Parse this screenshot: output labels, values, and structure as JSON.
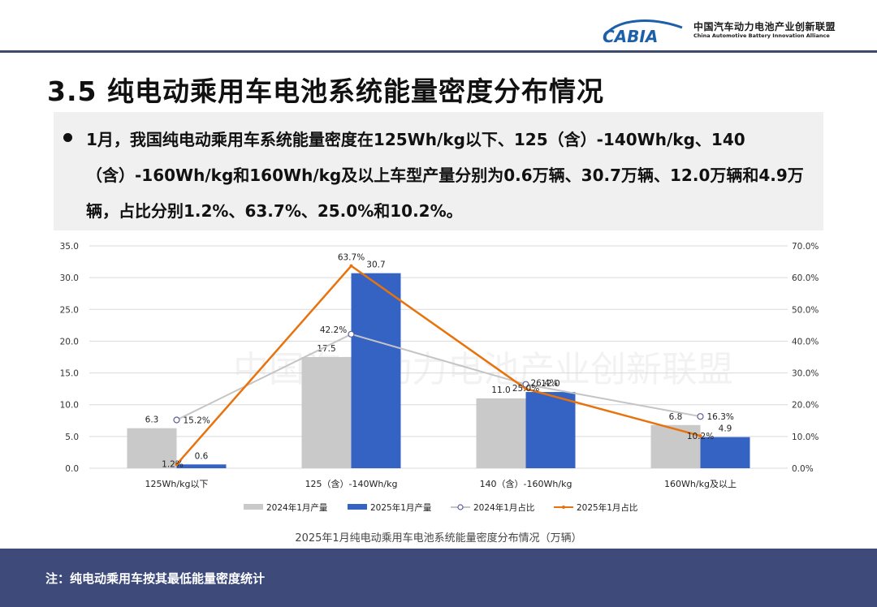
{
  "header": {
    "logo_mark": "CABIA",
    "logo_cn": "中国汽车动力电池产业创新联盟",
    "logo_en": "China Automotive Battery Innovation Alliance"
  },
  "title": "3.5 纯电动乘用车电池系统能量密度分布情况",
  "summary": "1月，我国纯电动乘用车系统能量密度在125Wh/kg以下、125（含）-140Wh/kg、140（含）-160Wh/kg和160Wh/kg及以上车型产量分别为0.6万辆、30.7万辆、12.0万辆和4.9万辆，占比分别1.2%、63.7%、25.0%和10.2%。",
  "watermark": "中国汽车动力电池产业创新联盟",
  "colors": {
    "bar_2024": "#c9c9c9",
    "bar_2025": "#3563c4",
    "line_2024": "#c4c4c4",
    "line_2025": "#e8720c",
    "footer": "#3d4a7a"
  },
  "chart_data": {
    "type": "bar",
    "title": "2025年1月纯电动乘用车电池系统能量密度分布情况（万辆）",
    "categories": [
      "125Wh/kg以下",
      "125（含）-140Wh/kg",
      "140（含）-160Wh/kg",
      "160Wh/kg及以上"
    ],
    "y_left": {
      "min": 0,
      "max": 35,
      "ticks": [
        "0.0",
        "5.0",
        "10.0",
        "15.0",
        "20.0",
        "25.0",
        "30.0",
        "35.0"
      ]
    },
    "y_right": {
      "min": 0,
      "max": 70,
      "ticks": [
        "0.0%",
        "10.0%",
        "20.0%",
        "30.0%",
        "40.0%",
        "50.0%",
        "60.0%",
        "70.0%"
      ]
    },
    "grid": true,
    "legend_position": "bottom",
    "series": [
      {
        "name": "2024年1月产量",
        "kind": "bar",
        "axis": "left",
        "values": [
          6.3,
          17.5,
          11.0,
          6.8
        ],
        "labels": [
          "6.3",
          "17.5",
          "11.0",
          "6.8"
        ]
      },
      {
        "name": "2025年1月产量",
        "kind": "bar",
        "axis": "left",
        "values": [
          0.6,
          30.7,
          12.0,
          4.9
        ],
        "labels": [
          "0.6",
          "30.7",
          "12.0",
          "4.9"
        ]
      },
      {
        "name": "2024年1月占比",
        "kind": "line",
        "axis": "right",
        "values": [
          15.2,
          42.2,
          26.4,
          16.3
        ],
        "labels": [
          "15.2%",
          "42.2%",
          "26.4%",
          "16.3%"
        ]
      },
      {
        "name": "2025年1月占比",
        "kind": "line",
        "axis": "right",
        "values": [
          1.2,
          63.7,
          25.0,
          10.2
        ],
        "labels": [
          "1.2%",
          "63.7%",
          "25.0%",
          "10.2%"
        ]
      }
    ]
  },
  "footer": {
    "note": "注：纯电动乘用车按其最低能量密度统计"
  }
}
